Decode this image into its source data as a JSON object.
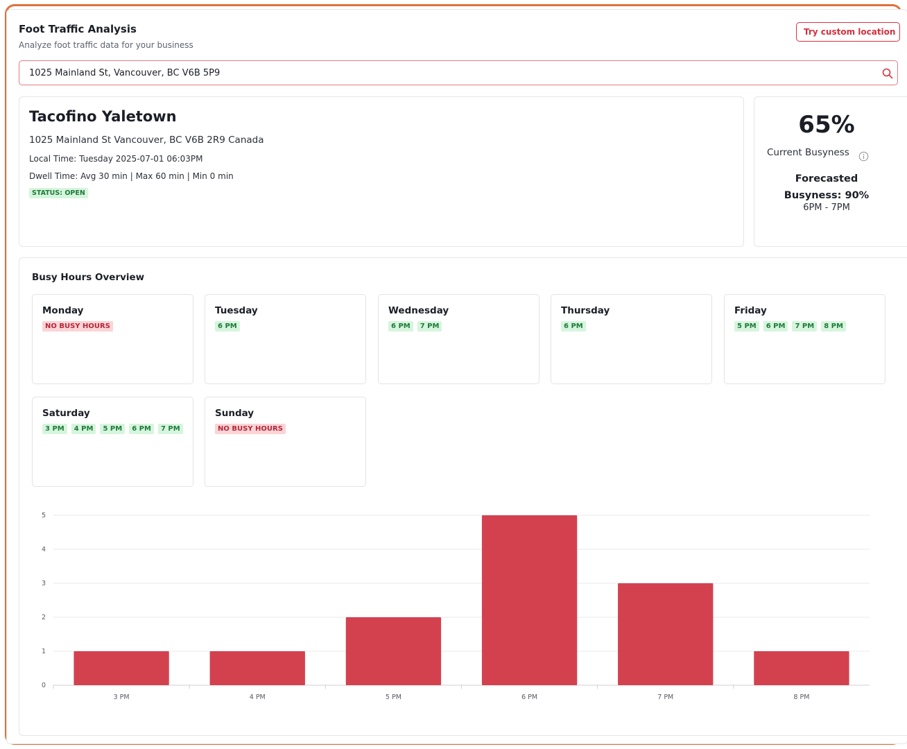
{
  "header": {
    "title": "Foot Traffic Analysis",
    "subtitle": "Analyze foot traffic data for your business",
    "custom_location_label": "Try custom location"
  },
  "search": {
    "value": "1025 Mainland St, Vancouver, BC V6B 5P9",
    "icon": "search-icon"
  },
  "location": {
    "name": "Tacofino Yaletown",
    "address": "1025 Mainland St Vancouver, BC V6B 2R9 Canada",
    "local_time": "Local Time: Tuesday 2025-07-01 06:03PM",
    "dwell_time": "Dwell Time: Avg 30 min | Max 60 min | Min 0 min",
    "status": "STATUS: OPEN"
  },
  "busyness": {
    "current_percent": "65%",
    "current_label": "Current Busyness",
    "forecast_line1": "Forecasted",
    "forecast_line2": "Busyness: 90%",
    "forecast_range": "6PM - 7PM"
  },
  "overview": {
    "title": "Busy Hours Overview",
    "days": [
      {
        "name": "Monday",
        "hours": [],
        "empty_label": "NO BUSY HOURS"
      },
      {
        "name": "Tuesday",
        "hours": [
          "6 PM"
        ]
      },
      {
        "name": "Wednesday",
        "hours": [
          "6 PM",
          "7 PM"
        ]
      },
      {
        "name": "Thursday",
        "hours": [
          "6 PM"
        ]
      },
      {
        "name": "Friday",
        "hours": [
          "5 PM",
          "6 PM",
          "7 PM",
          "8 PM"
        ]
      },
      {
        "name": "Saturday",
        "hours": [
          "3 PM",
          "4 PM",
          "5 PM",
          "6 PM",
          "7 PM"
        ]
      },
      {
        "name": "Sunday",
        "hours": [],
        "empty_label": "NO BUSY HOURS"
      }
    ]
  },
  "colors": {
    "accent": "#d6303d",
    "bar": "#d3414f",
    "frame": "#e0703a",
    "chip_bg": "#d6f5dd",
    "chip_none_bg": "#fad4d6"
  },
  "chart_data": {
    "type": "bar",
    "categories": [
      "3 PM",
      "4 PM",
      "5 PM",
      "6 PM",
      "7 PM",
      "8 PM"
    ],
    "values": [
      1,
      1,
      2,
      5,
      3,
      1
    ],
    "title": "",
    "xlabel": "",
    "ylabel": "",
    "ylim": [
      0,
      5
    ],
    "yticks": [
      0,
      1,
      2,
      3,
      4,
      5
    ],
    "grid": true
  }
}
